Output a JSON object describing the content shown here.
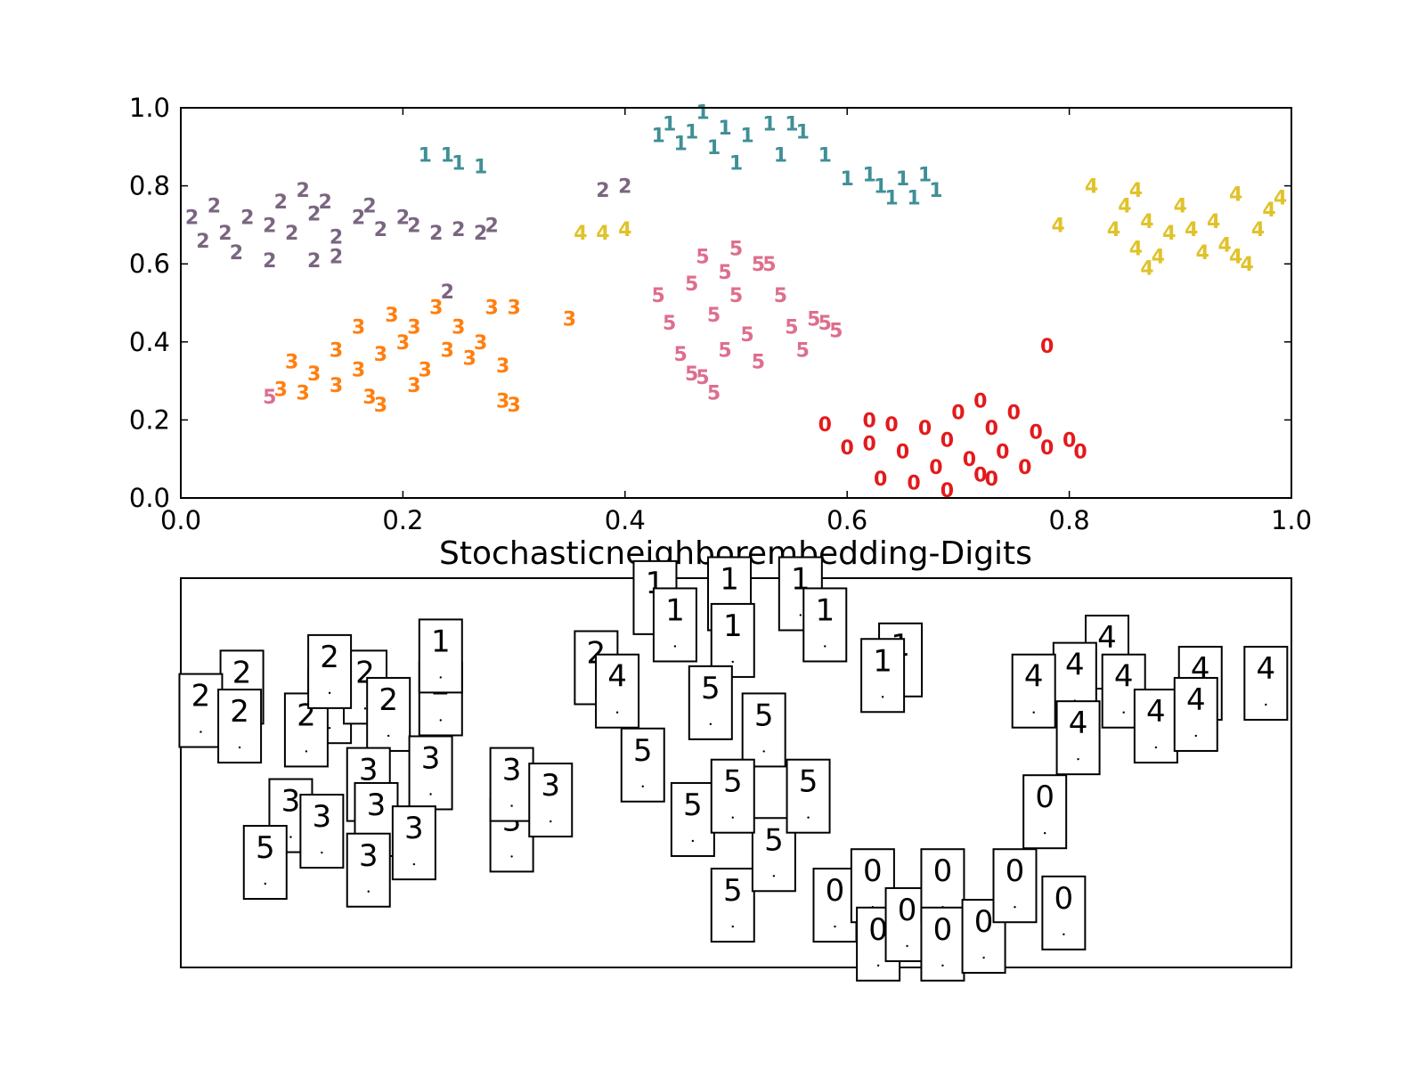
{
  "chart_data": [
    {
      "type": "scatter",
      "title": "",
      "xlabel": "",
      "ylabel": "",
      "xlim": [
        0.0,
        1.0
      ],
      "ylim": [
        0.0,
        1.0
      ],
      "x_ticks": [
        "0.0",
        "0.2",
        "0.4",
        "0.6",
        "0.8",
        "1.0"
      ],
      "y_ticks": [
        "0.0",
        "0.2",
        "0.4",
        "0.6",
        "0.8",
        "1.0"
      ],
      "grid": false,
      "colors": {
        "0": "#e31a1c",
        "1": "#3f8f96",
        "2": "#7a6680",
        "3": "#ff7f0e",
        "4": "#e0c22a",
        "5": "#de6e8e"
      },
      "points": [
        {
          "x": 0.58,
          "y": 0.19,
          "label": "0"
        },
        {
          "x": 0.6,
          "y": 0.13,
          "label": "0"
        },
        {
          "x": 0.62,
          "y": 0.14,
          "label": "0"
        },
        {
          "x": 0.64,
          "y": 0.19,
          "label": "0"
        },
        {
          "x": 0.65,
          "y": 0.12,
          "label": "0"
        },
        {
          "x": 0.67,
          "y": 0.18,
          "label": "0"
        },
        {
          "x": 0.68,
          "y": 0.08,
          "label": "0"
        },
        {
          "x": 0.69,
          "y": 0.15,
          "label": "0"
        },
        {
          "x": 0.69,
          "y": 0.02,
          "label": "0"
        },
        {
          "x": 0.7,
          "y": 0.22,
          "label": "0"
        },
        {
          "x": 0.71,
          "y": 0.1,
          "label": "0"
        },
        {
          "x": 0.72,
          "y": 0.25,
          "label": "0"
        },
        {
          "x": 0.72,
          "y": 0.06,
          "label": "0"
        },
        {
          "x": 0.73,
          "y": 0.18,
          "label": "0"
        },
        {
          "x": 0.74,
          "y": 0.12,
          "label": "0"
        },
        {
          "x": 0.75,
          "y": 0.22,
          "label": "0"
        },
        {
          "x": 0.76,
          "y": 0.08,
          "label": "0"
        },
        {
          "x": 0.77,
          "y": 0.17,
          "label": "0"
        },
        {
          "x": 0.78,
          "y": 0.13,
          "label": "0"
        },
        {
          "x": 0.8,
          "y": 0.15,
          "label": "0"
        },
        {
          "x": 0.81,
          "y": 0.12,
          "label": "0"
        },
        {
          "x": 0.78,
          "y": 0.39,
          "label": "0"
        },
        {
          "x": 0.63,
          "y": 0.05,
          "label": "0"
        },
        {
          "x": 0.66,
          "y": 0.04,
          "label": "0"
        },
        {
          "x": 0.62,
          "y": 0.2,
          "label": "0"
        },
        {
          "x": 0.73,
          "y": 0.05,
          "label": "0"
        },
        {
          "x": 0.22,
          "y": 0.88,
          "label": "1"
        },
        {
          "x": 0.24,
          "y": 0.88,
          "label": "1"
        },
        {
          "x": 0.25,
          "y": 0.86,
          "label": "1"
        },
        {
          "x": 0.27,
          "y": 0.85,
          "label": "1"
        },
        {
          "x": 0.43,
          "y": 0.93,
          "label": "1"
        },
        {
          "x": 0.44,
          "y": 0.96,
          "label": "1"
        },
        {
          "x": 0.45,
          "y": 0.91,
          "label": "1"
        },
        {
          "x": 0.46,
          "y": 0.94,
          "label": "1"
        },
        {
          "x": 0.47,
          "y": 0.99,
          "label": "1"
        },
        {
          "x": 0.48,
          "y": 0.9,
          "label": "1"
        },
        {
          "x": 0.49,
          "y": 0.95,
          "label": "1"
        },
        {
          "x": 0.5,
          "y": 0.86,
          "label": "1"
        },
        {
          "x": 0.51,
          "y": 0.93,
          "label": "1"
        },
        {
          "x": 0.53,
          "y": 0.96,
          "label": "1"
        },
        {
          "x": 0.54,
          "y": 0.88,
          "label": "1"
        },
        {
          "x": 0.55,
          "y": 0.96,
          "label": "1"
        },
        {
          "x": 0.56,
          "y": 0.94,
          "label": "1"
        },
        {
          "x": 0.58,
          "y": 0.88,
          "label": "1"
        },
        {
          "x": 0.6,
          "y": 0.82,
          "label": "1"
        },
        {
          "x": 0.62,
          "y": 0.83,
          "label": "1"
        },
        {
          "x": 0.63,
          "y": 0.8,
          "label": "1"
        },
        {
          "x": 0.64,
          "y": 0.77,
          "label": "1"
        },
        {
          "x": 0.65,
          "y": 0.82,
          "label": "1"
        },
        {
          "x": 0.66,
          "y": 0.77,
          "label": "1"
        },
        {
          "x": 0.67,
          "y": 0.83,
          "label": "1"
        },
        {
          "x": 0.68,
          "y": 0.79,
          "label": "1"
        },
        {
          "x": 0.01,
          "y": 0.72,
          "label": "2"
        },
        {
          "x": 0.02,
          "y": 0.66,
          "label": "2"
        },
        {
          "x": 0.03,
          "y": 0.75,
          "label": "2"
        },
        {
          "x": 0.04,
          "y": 0.68,
          "label": "2"
        },
        {
          "x": 0.05,
          "y": 0.63,
          "label": "2"
        },
        {
          "x": 0.06,
          "y": 0.72,
          "label": "2"
        },
        {
          "x": 0.08,
          "y": 0.7,
          "label": "2"
        },
        {
          "x": 0.08,
          "y": 0.61,
          "label": "2"
        },
        {
          "x": 0.09,
          "y": 0.76,
          "label": "2"
        },
        {
          "x": 0.1,
          "y": 0.68,
          "label": "2"
        },
        {
          "x": 0.11,
          "y": 0.79,
          "label": "2"
        },
        {
          "x": 0.12,
          "y": 0.73,
          "label": "2"
        },
        {
          "x": 0.12,
          "y": 0.61,
          "label": "2"
        },
        {
          "x": 0.13,
          "y": 0.76,
          "label": "2"
        },
        {
          "x": 0.14,
          "y": 0.67,
          "label": "2"
        },
        {
          "x": 0.14,
          "y": 0.62,
          "label": "2"
        },
        {
          "x": 0.16,
          "y": 0.72,
          "label": "2"
        },
        {
          "x": 0.17,
          "y": 0.75,
          "label": "2"
        },
        {
          "x": 0.18,
          "y": 0.69,
          "label": "2"
        },
        {
          "x": 0.2,
          "y": 0.72,
          "label": "2"
        },
        {
          "x": 0.21,
          "y": 0.7,
          "label": "2"
        },
        {
          "x": 0.23,
          "y": 0.68,
          "label": "2"
        },
        {
          "x": 0.25,
          "y": 0.69,
          "label": "2"
        },
        {
          "x": 0.27,
          "y": 0.68,
          "label": "2"
        },
        {
          "x": 0.28,
          "y": 0.7,
          "label": "2"
        },
        {
          "x": 0.38,
          "y": 0.79,
          "label": "2"
        },
        {
          "x": 0.4,
          "y": 0.8,
          "label": "2"
        },
        {
          "x": 0.24,
          "y": 0.53,
          "label": "2"
        },
        {
          "x": 0.09,
          "y": 0.28,
          "label": "3"
        },
        {
          "x": 0.1,
          "y": 0.35,
          "label": "3"
        },
        {
          "x": 0.11,
          "y": 0.27,
          "label": "3"
        },
        {
          "x": 0.12,
          "y": 0.32,
          "label": "3"
        },
        {
          "x": 0.14,
          "y": 0.29,
          "label": "3"
        },
        {
          "x": 0.14,
          "y": 0.38,
          "label": "3"
        },
        {
          "x": 0.16,
          "y": 0.33,
          "label": "3"
        },
        {
          "x": 0.16,
          "y": 0.44,
          "label": "3"
        },
        {
          "x": 0.17,
          "y": 0.26,
          "label": "3"
        },
        {
          "x": 0.18,
          "y": 0.37,
          "label": "3"
        },
        {
          "x": 0.19,
          "y": 0.47,
          "label": "3"
        },
        {
          "x": 0.2,
          "y": 0.4,
          "label": "3"
        },
        {
          "x": 0.21,
          "y": 0.44,
          "label": "3"
        },
        {
          "x": 0.22,
          "y": 0.33,
          "label": "3"
        },
        {
          "x": 0.23,
          "y": 0.49,
          "label": "3"
        },
        {
          "x": 0.24,
          "y": 0.38,
          "label": "3"
        },
        {
          "x": 0.25,
          "y": 0.44,
          "label": "3"
        },
        {
          "x": 0.26,
          "y": 0.36,
          "label": "3"
        },
        {
          "x": 0.27,
          "y": 0.4,
          "label": "3"
        },
        {
          "x": 0.28,
          "y": 0.49,
          "label": "3"
        },
        {
          "x": 0.3,
          "y": 0.49,
          "label": "3"
        },
        {
          "x": 0.29,
          "y": 0.34,
          "label": "3"
        },
        {
          "x": 0.29,
          "y": 0.25,
          "label": "3"
        },
        {
          "x": 0.3,
          "y": 0.24,
          "label": "3"
        },
        {
          "x": 0.35,
          "y": 0.46,
          "label": "3"
        },
        {
          "x": 0.21,
          "y": 0.29,
          "label": "3"
        },
        {
          "x": 0.18,
          "y": 0.24,
          "label": "3"
        },
        {
          "x": 0.84,
          "y": 0.69,
          "label": "4"
        },
        {
          "x": 0.85,
          "y": 0.75,
          "label": "4"
        },
        {
          "x": 0.86,
          "y": 0.64,
          "label": "4"
        },
        {
          "x": 0.87,
          "y": 0.71,
          "label": "4"
        },
        {
          "x": 0.88,
          "y": 0.62,
          "label": "4"
        },
        {
          "x": 0.89,
          "y": 0.68,
          "label": "4"
        },
        {
          "x": 0.9,
          "y": 0.75,
          "label": "4"
        },
        {
          "x": 0.91,
          "y": 0.69,
          "label": "4"
        },
        {
          "x": 0.92,
          "y": 0.63,
          "label": "4"
        },
        {
          "x": 0.93,
          "y": 0.71,
          "label": "4"
        },
        {
          "x": 0.94,
          "y": 0.65,
          "label": "4"
        },
        {
          "x": 0.95,
          "y": 0.78,
          "label": "4"
        },
        {
          "x": 0.96,
          "y": 0.6,
          "label": "4"
        },
        {
          "x": 0.97,
          "y": 0.69,
          "label": "4"
        },
        {
          "x": 0.98,
          "y": 0.74,
          "label": "4"
        },
        {
          "x": 0.99,
          "y": 0.77,
          "label": "4"
        },
        {
          "x": 0.82,
          "y": 0.8,
          "label": "4"
        },
        {
          "x": 0.86,
          "y": 0.79,
          "label": "4"
        },
        {
          "x": 0.87,
          "y": 0.59,
          "label": "4"
        },
        {
          "x": 0.36,
          "y": 0.68,
          "label": "4"
        },
        {
          "x": 0.38,
          "y": 0.68,
          "label": "4"
        },
        {
          "x": 0.4,
          "y": 0.69,
          "label": "4"
        },
        {
          "x": 0.79,
          "y": 0.7,
          "label": "4"
        },
        {
          "x": 0.95,
          "y": 0.62,
          "label": "4"
        },
        {
          "x": 0.08,
          "y": 0.26,
          "label": "5"
        },
        {
          "x": 0.43,
          "y": 0.52,
          "label": "5"
        },
        {
          "x": 0.44,
          "y": 0.45,
          "label": "5"
        },
        {
          "x": 0.45,
          "y": 0.37,
          "label": "5"
        },
        {
          "x": 0.46,
          "y": 0.55,
          "label": "5"
        },
        {
          "x": 0.47,
          "y": 0.62,
          "label": "5"
        },
        {
          "x": 0.47,
          "y": 0.31,
          "label": "5"
        },
        {
          "x": 0.48,
          "y": 0.47,
          "label": "5"
        },
        {
          "x": 0.49,
          "y": 0.58,
          "label": "5"
        },
        {
          "x": 0.49,
          "y": 0.38,
          "label": "5"
        },
        {
          "x": 0.5,
          "y": 0.52,
          "label": "5"
        },
        {
          "x": 0.51,
          "y": 0.42,
          "label": "5"
        },
        {
          "x": 0.52,
          "y": 0.6,
          "label": "5"
        },
        {
          "x": 0.52,
          "y": 0.35,
          "label": "5"
        },
        {
          "x": 0.54,
          "y": 0.52,
          "label": "5"
        },
        {
          "x": 0.55,
          "y": 0.44,
          "label": "5"
        },
        {
          "x": 0.56,
          "y": 0.38,
          "label": "5"
        },
        {
          "x": 0.57,
          "y": 0.46,
          "label": "5"
        },
        {
          "x": 0.58,
          "y": 0.45,
          "label": "5"
        },
        {
          "x": 0.59,
          "y": 0.43,
          "label": "5"
        },
        {
          "x": 0.48,
          "y": 0.27,
          "label": "5"
        },
        {
          "x": 0.46,
          "y": 0.32,
          "label": "5"
        },
        {
          "x": 0.5,
          "y": 0.64,
          "label": "5"
        },
        {
          "x": 0.53,
          "y": 0.6,
          "label": "5"
        }
      ]
    },
    {
      "type": "scatter",
      "title": "Stochasticneighborembedding-Digits",
      "xlabel": "",
      "ylabel": "",
      "grid": false,
      "cards": [
        {
          "x": 0.055,
          "y": 0.72,
          "label": "2"
        },
        {
          "x": 0.018,
          "y": 0.66,
          "label": "2"
        },
        {
          "x": 0.053,
          "y": 0.62,
          "label": "2"
        },
        {
          "x": 0.134,
          "y": 0.67,
          "label": "2"
        },
        {
          "x": 0.113,
          "y": 0.61,
          "label": "2"
        },
        {
          "x": 0.166,
          "y": 0.72,
          "label": "2"
        },
        {
          "x": 0.134,
          "y": 0.76,
          "label": "2"
        },
        {
          "x": 0.187,
          "y": 0.65,
          "label": "2"
        },
        {
          "x": 0.234,
          "y": 0.69,
          "label": "2"
        },
        {
          "x": 0.234,
          "y": 0.8,
          "label": "1"
        },
        {
          "x": 0.374,
          "y": 0.77,
          "label": "2"
        },
        {
          "x": 0.393,
          "y": 0.71,
          "label": "4"
        },
        {
          "x": 0.169,
          "y": 0.47,
          "label": "3"
        },
        {
          "x": 0.225,
          "y": 0.5,
          "label": "3"
        },
        {
          "x": 0.099,
          "y": 0.39,
          "label": "3"
        },
        {
          "x": 0.127,
          "y": 0.35,
          "label": "3"
        },
        {
          "x": 0.176,
          "y": 0.38,
          "label": "3"
        },
        {
          "x": 0.21,
          "y": 0.32,
          "label": "3"
        },
        {
          "x": 0.169,
          "y": 0.25,
          "label": "3"
        },
        {
          "x": 0.076,
          "y": 0.27,
          "label": "5"
        },
        {
          "x": 0.298,
          "y": 0.34,
          "label": "3"
        },
        {
          "x": 0.298,
          "y": 0.47,
          "label": "3"
        },
        {
          "x": 0.333,
          "y": 0.43,
          "label": "3"
        },
        {
          "x": 0.427,
          "y": 0.95,
          "label": "1"
        },
        {
          "x": 0.445,
          "y": 0.88,
          "label": "1"
        },
        {
          "x": 0.494,
          "y": 0.96,
          "label": "1"
        },
        {
          "x": 0.497,
          "y": 0.84,
          "label": "1"
        },
        {
          "x": 0.558,
          "y": 0.96,
          "label": "1"
        },
        {
          "x": 0.58,
          "y": 0.88,
          "label": "1"
        },
        {
          "x": 0.648,
          "y": 0.79,
          "label": "1"
        },
        {
          "x": 0.632,
          "y": 0.75,
          "label": "1"
        },
        {
          "x": 0.416,
          "y": 0.52,
          "label": "5"
        },
        {
          "x": 0.477,
          "y": 0.68,
          "label": "5"
        },
        {
          "x": 0.525,
          "y": 0.61,
          "label": "5"
        },
        {
          "x": 0.461,
          "y": 0.38,
          "label": "5"
        },
        {
          "x": 0.497,
          "y": 0.16,
          "label": "5"
        },
        {
          "x": 0.534,
          "y": 0.29,
          "label": "5"
        },
        {
          "x": 0.565,
          "y": 0.44,
          "label": "5"
        },
        {
          "x": 0.497,
          "y": 0.44,
          "label": "5"
        },
        {
          "x": 0.834,
          "y": 0.81,
          "label": "4"
        },
        {
          "x": 0.805,
          "y": 0.74,
          "label": "4"
        },
        {
          "x": 0.768,
          "y": 0.71,
          "label": "4"
        },
        {
          "x": 0.849,
          "y": 0.71,
          "label": "4"
        },
        {
          "x": 0.808,
          "y": 0.59,
          "label": "4"
        },
        {
          "x": 0.878,
          "y": 0.62,
          "label": "4"
        },
        {
          "x": 0.918,
          "y": 0.73,
          "label": "4"
        },
        {
          "x": 0.914,
          "y": 0.65,
          "label": "4"
        },
        {
          "x": 0.977,
          "y": 0.73,
          "label": "4"
        },
        {
          "x": 0.778,
          "y": 0.4,
          "label": "0"
        },
        {
          "x": 0.589,
          "y": 0.16,
          "label": "0"
        },
        {
          "x": 0.623,
          "y": 0.21,
          "label": "0"
        },
        {
          "x": 0.628,
          "y": 0.06,
          "label": "0"
        },
        {
          "x": 0.654,
          "y": 0.11,
          "label": "0"
        },
        {
          "x": 0.686,
          "y": 0.21,
          "label": "0"
        },
        {
          "x": 0.686,
          "y": 0.06,
          "label": "0"
        },
        {
          "x": 0.723,
          "y": 0.08,
          "label": "0"
        },
        {
          "x": 0.751,
          "y": 0.21,
          "label": "0"
        },
        {
          "x": 0.795,
          "y": 0.14,
          "label": "0"
        }
      ]
    }
  ]
}
